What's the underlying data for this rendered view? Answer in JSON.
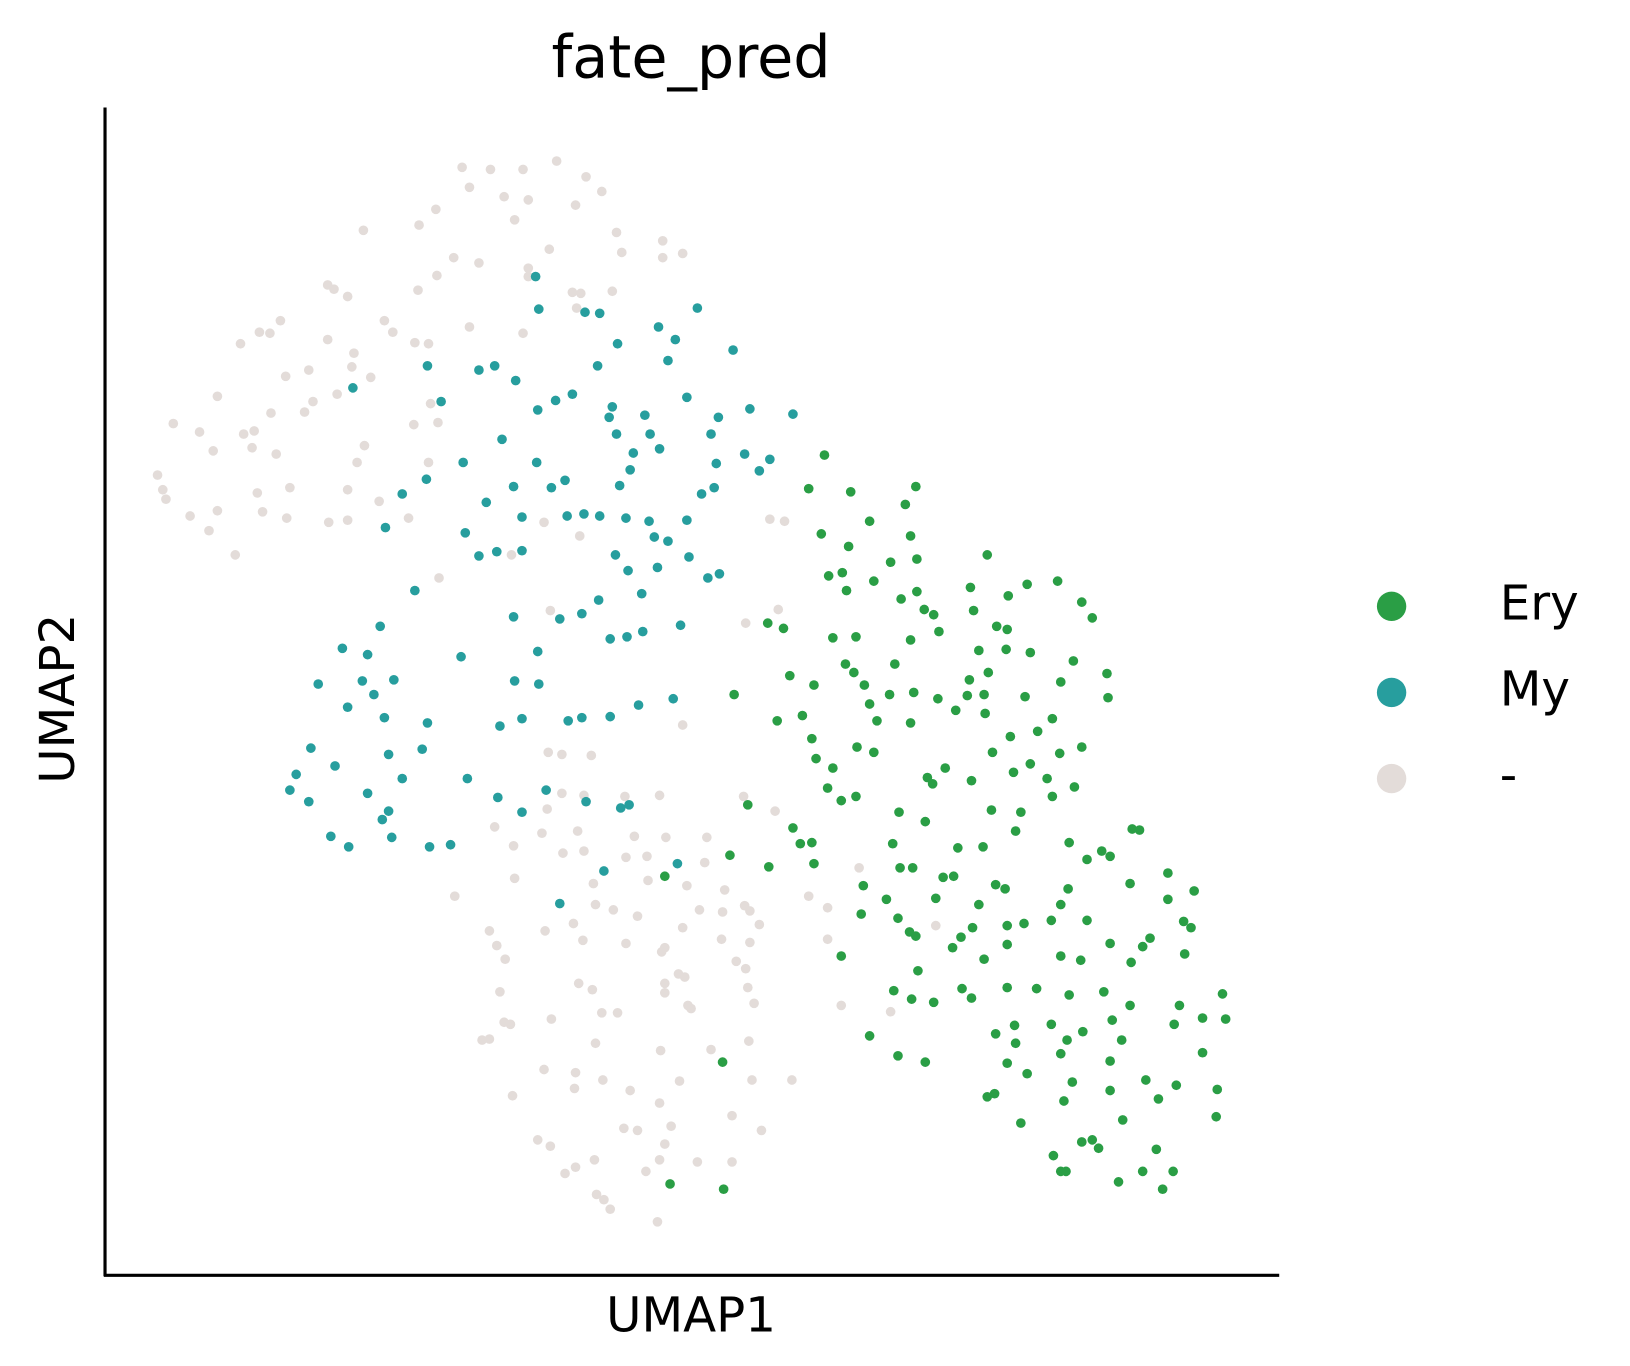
{
  "chart_data": {
    "type": "scatter",
    "title": "fate_pred",
    "xlabel": "UMAP1",
    "ylabel": "UMAP2",
    "xlim": [
      0,
      1118
    ],
    "ylim": [
      0,
      1112
    ],
    "legend": "right",
    "series": [
      {
        "name": "-",
        "color": "#e3dcd9",
        "x": [
          340,
          367,
          398,
          430,
          458,
          347,
          380,
          403,
          448,
          473,
          315,
          299,
          246,
          390,
          487,
          531,
          423,
          492,
          531,
          550,
          332,
          356,
          403,
          403,
          316,
          445,
          453,
          483,
          212,
          218,
          231,
          298,
          449,
          167,
          157,
          147,
          129,
          266,
          274,
          347,
          398,
          212,
          295,
          308,
          237,
          172,
          194,
          235,
          253,
          221,
          198,
          107,
          158,
          190,
          310,
          65,
          90,
          132,
          142,
          140,
          103,
          163,
          247,
          294,
          317,
          240,
          308,
          50,
          55,
          58,
          145,
          176,
          231,
          261,
          107,
          81,
          99,
          150,
          173,
          213,
          231,
          289,
          318,
          124,
          418,
          452,
          387,
          633,
          647,
          424,
          610,
          641,
          550,
          422,
          435,
          463,
          435,
          456,
          495,
          528,
          608,
          638,
          421,
          371,
          389,
          416,
          450,
          436,
          456,
          504,
          534,
          496,
          516,
          573,
          571,
          390,
          333,
          465,
          517,
          554,
          718,
          670,
          688,
          590,
          609,
          419,
          446,
          467,
          484,
          507,
          566,
          588,
          623,
          614,
          550,
          366,
          373,
          381,
          455,
          496,
          533,
          530,
          587,
          614,
          688,
          601,
          610,
          546,
          552,
          533,
          451,
          464,
          533,
          612,
          791,
          376,
          473,
          488,
          555,
          558,
          618,
          701,
          748,
          380,
          386,
          425,
          359,
          366,
          467,
          529,
          577,
          613,
          418,
          448,
          474,
          500,
          547,
          616,
          654,
          388,
          447,
          528,
          494,
          507,
          539,
          597,
          625,
          412,
          424,
          533,
          528,
          466,
          448,
          438,
          515,
          564,
          597,
          468,
          475,
          481,
          526
        ],
        "y": [
          1055,
          1053,
          1053,
          1061,
          1046,
          1036,
          1027,
          1024,
          1019,
          1032,
          1015,
          1000,
          995,
          1005,
          993,
          985,
          977,
          974,
          969,
          973,
          969,
          964,
          959,
          951,
          952,
          936,
          935,
          937,
          943,
          939,
          932,
          938,
          921,
          909,
          897,
          898,
          887,
          909,
          898,
          903,
          897,
          891,
          888,
          887,
          878,
          856,
          862,
          865,
          855,
          839,
          832,
          837,
          821,
          822,
          830,
          811,
          803,
          801,
          804,
          788,
          785,
          782,
          790,
          810,
          812,
          774,
          774,
          762,
          748,
          739,
          745,
          750,
          748,
          737,
          728,
          723,
          709,
          727,
          721,
          717,
          719,
          721,
          664,
          686,
          717,
          704,
          686,
          720,
          718,
          633,
          621,
          634,
          524,
          498,
          496,
          495,
          459,
          457,
          456,
          457,
          456,
          442,
          444,
          427,
          409,
          421,
          423,
          402,
          404,
          418,
          417,
          398,
          399,
          417,
          393,
          378,
          361,
          373,
          376,
          371,
          388,
          361,
          350,
          367,
          352,
          328,
          335,
          353,
          348,
          342,
          348,
          346,
          334,
          347,
          331,
          328,
          314,
          301,
          319,
          316,
          312,
          308,
          320,
          317,
          320,
          299,
          292,
          287,
          284,
          278,
          278,
          272,
          269,
          274,
          333,
          270,
          250,
          250,
          257,
          254,
          259,
          257,
          251,
          241,
          239,
          244,
          224,
          225,
          221,
          214,
          215,
          223,
          196,
          193,
          186,
          176,
          185,
          186,
          186,
          171,
          178,
          164,
          140,
          138,
          142,
          152,
          138,
          129,
          123,
          125,
          110,
          110,
          103,
          97,
          99,
          108,
          108,
          77,
          72,
          63,
          51
        ]
      },
      {
        "name": "My",
        "color": "#279e9e",
        "x": [
          410,
          413,
          471,
          457,
          527,
          564,
          488,
          543,
          598,
          536,
          469,
          307,
          356,
          371,
          391,
          236,
          320,
          445,
          429,
          483,
          412,
          480,
          554,
          514,
          584,
          614,
          655,
          577,
          487,
          519,
          528,
          503,
          378,
          341,
          411,
          500,
          490,
          582,
          609,
          633,
          623,
          580,
          568,
          306,
          283,
          389,
          425,
          438,
          363,
          397,
          440,
          456,
          471,
          496,
          518,
          554,
          267,
          343,
          356,
          373,
          397,
          486,
          523,
          536,
          556,
          498,
          526,
          574,
          585,
          295,
          389,
          433,
          470,
          511,
          548,
          454,
          481,
          497,
          512,
          262,
          226,
          250,
          339,
          412,
          390,
          413,
          275,
          245,
          256,
          203,
          231,
          266,
          307,
          376,
          397,
          454,
          441,
          481,
          508,
          541,
          196,
          219,
          182,
          176,
          194,
          250,
          270,
          283,
          302,
          345,
          374,
          397,
          420,
          458,
          491,
          499,
          270,
          264,
          273,
          232,
          215,
          309,
          329,
          475,
          433,
          545
        ],
        "y": [
          951,
          920,
          916,
          917,
          903,
          921,
          887,
          891,
          881,
          871,
          866,
          866,
          862,
          866,
          852,
          845,
          832,
          839,
          833,
          827,
          824,
          817,
          836,
          819,
          817,
          825,
          820,
          801,
          801,
          801,
          787,
          783,
          796,
          774,
          774,
          767,
          752,
          773,
          782,
          777,
          766,
          750,
          744,
          758,
          744,
          751,
          750,
          757,
          736,
          722,
          723,
          725,
          723,
          721,
          718,
          719,
          712,
          707,
          685,
          689,
          690,
          686,
          703,
          699,
          684,
          671,
          674,
          664,
          668,
          652,
          627,
          625,
          643,
          649,
          619,
          630,
          606,
          608,
          613,
          618,
          597,
          591,
          589,
          594,
          566,
          563,
          567,
          566,
          553,
          563,
          541,
          531,
          526,
          523,
          530,
          531,
          528,
          532,
          543,
          549,
          502,
          485,
          477,
          462,
          451,
          459,
          496,
          473,
          501,
          473,
          455,
          441,
          462,
          451,
          445,
          448,
          442,
          434,
          417,
          408,
          418,
          408,
          410,
          385,
          354,
          392
        ]
      },
      {
        "name": "Ery",
        "color": "#2a9e45",
        "x": [
          685,
          670,
          710,
          772,
          762,
          728,
          682,
          708,
          767,
          773,
          748,
          840,
          689,
          702,
          732,
          758,
          773,
          706,
          780,
          824,
          860,
          878,
          907,
          930,
          940,
          827,
          789,
          794,
          767,
          715,
          693,
          646,
          631,
          849,
          859,
          832,
          858,
          881,
          922,
          705,
          752,
          713,
          723,
          747,
          770,
          793,
          841,
          823,
          837,
          821,
          876,
          910,
          954,
          955,
          675,
          652,
          599,
          640,
          664,
          728,
          735,
          767,
          810,
          838,
          888,
          902,
          862,
          845,
          673,
          677,
          693,
          716,
          732,
          783,
          788,
          800,
          825,
          865,
          881,
          909,
          930,
          897,
          923,
          688,
          701,
          715,
          756,
          781,
          844,
          872,
          902,
          612,
          655,
          662,
          673,
          675,
          632,
          595,
          750,
          757,
          812,
          836,
          867,
          918,
          949,
          978,
          985,
          935,
          957,
          722,
          744,
          769,
          798,
          808,
          791,
          832,
          848,
          857,
          917,
          910,
          976,
          1012,
          1037,
          1012,
          720,
          755,
          766,
          772,
          826,
          859,
          875,
          901,
          935,
          957,
          995,
          1027,
          1034,
          807,
          815,
          837,
          859,
          910,
          929,
          977,
          988,
          1028,
          701,
          774,
          751,
          768,
          789,
          816,
          825,
          859,
          887,
          918,
          951,
          976,
          1023,
          1064,
          1067,
          1045,
          1018,
          866,
          901,
          959,
          931,
          848,
          867,
          916,
          968,
          910,
          957,
          1045,
          728,
          755,
          781,
          859,
          878,
          840,
          847,
          921,
          957,
          991,
          1003,
          1020,
          1059,
          913,
          969,
          1058,
          872,
          930,
          940,
          946,
          903,
          1001,
          910,
          915,
          988,
          1017,
          965,
          1007,
          533,
          588,
          538,
          589
        ],
        "y": [
          781,
          749,
          746,
          751,
          734,
          718,
          706,
          694,
          704,
          682,
          679,
          686,
          666,
          669,
          661,
          644,
          651,
          652,
          634,
          655,
          647,
          658,
          661,
          641,
          626,
          633,
          629,
          613,
          605,
          608,
          607,
          616,
          621,
          618,
          615,
          595,
          596,
          593,
          585,
          582,
          582,
          574,
          562,
          553,
          555,
          549,
          574,
          567,
          553,
          552,
          551,
          565,
          573,
          550,
          562,
          571,
          553,
          528,
          533,
          544,
          528,
          526,
          538,
          535,
          518,
          530,
          513,
          498,
          511,
          492,
          483,
          503,
          498,
          474,
          468,
          483,
          471,
          479,
          487,
          497,
          503,
          473,
          465,
          464,
          452,
          456,
          441,
          432,
          443,
          441,
          456,
          448,
          426,
          411,
          412,
          392,
          389,
          400,
          411,
          388,
          407,
          408,
          423,
          412,
          404,
          425,
          424,
          396,
          399,
          371,
          358,
          388,
          379,
          380,
          359,
          353,
          372,
          368,
          368,
          353,
          373,
          383,
          366,
          358,
          344,
          340,
          327,
          323,
          331,
          333,
          335,
          338,
          338,
          316,
          321,
          337,
          331,
          312,
          322,
          301,
          315,
          304,
          300,
          298,
          313,
          306,
          304,
          290,
          271,
          263,
          260,
          273,
          264,
          274,
          273,
          267,
          270,
          257,
          257,
          268,
          244,
          245,
          239,
          238,
          239,
          243,
          232,
          230,
          221,
          224,
          224,
          211,
          204,
          212,
          228,
          209,
          203,
          202,
          192,
          170,
          173,
          184,
          176,
          186,
          168,
          181,
          177,
          166,
          148,
          151,
          145,
          127,
          129,
          121,
          114,
          120,
          99,
          99,
          99,
          99,
          89,
          82,
          380,
          203,
          87,
          82
        ]
      }
    ]
  }
}
